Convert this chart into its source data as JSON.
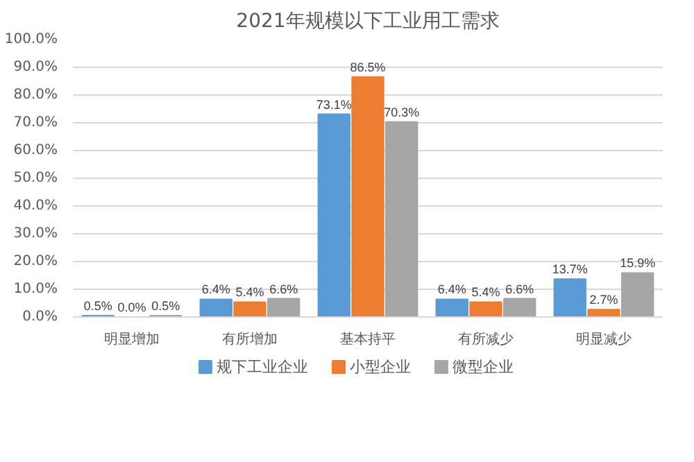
{
  "chart_data": {
    "type": "bar",
    "title": "2021年规模以下工业用工需求",
    "categories": [
      "明显增加",
      "有所增加",
      "基本持平",
      "有所减少",
      "明显减少"
    ],
    "series": [
      {
        "name": "规下工业企业",
        "color": "#5b9bd5",
        "values": [
          0.5,
          6.4,
          73.1,
          6.4,
          13.7
        ],
        "value_labels": [
          "0.5%",
          "6.4%",
          "73.1%",
          "6.4%",
          "13.7%"
        ]
      },
      {
        "name": "小型企业",
        "color": "#ed7d31",
        "values": [
          0.0,
          5.4,
          86.5,
          5.4,
          2.7
        ],
        "value_labels": [
          "0.0%",
          "5.4%",
          "86.5%",
          "5.4%",
          "2.7%"
        ]
      },
      {
        "name": "微型企业",
        "color": "#a5a5a5",
        "values": [
          0.5,
          6.6,
          70.3,
          6.6,
          15.9
        ],
        "value_labels": [
          "0.5%",
          "6.6%",
          "70.3%",
          "6.6%",
          "15.9%"
        ]
      }
    ],
    "ylim": [
      0,
      100
    ],
    "yticks": [
      {
        "value": 0,
        "label": "0.0%"
      },
      {
        "value": 10,
        "label": "10.0%"
      },
      {
        "value": 20,
        "label": "20.0%"
      },
      {
        "value": 30,
        "label": "30.0%"
      },
      {
        "value": 40,
        "label": "40.0%"
      },
      {
        "value": 50,
        "label": "50.0%"
      },
      {
        "value": 60,
        "label": "60.0%"
      },
      {
        "value": 70,
        "label": "70.0%"
      },
      {
        "value": 80,
        "label": "80.0%"
      },
      {
        "value": 90,
        "label": "90.0%"
      },
      {
        "value": 100,
        "label": "100.0%"
      }
    ],
    "grid": "y",
    "legend": "bottom"
  }
}
